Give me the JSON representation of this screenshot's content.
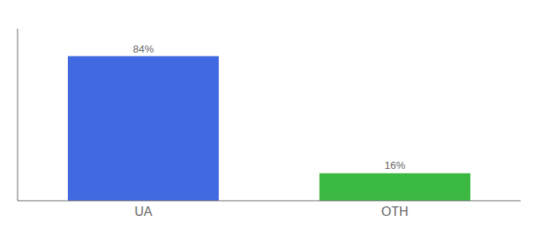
{
  "chart_data": {
    "type": "bar",
    "categories": [
      "UA",
      "OTH"
    ],
    "values": [
      84,
      16
    ],
    "colors": [
      "#4169e1",
      "#3cb943"
    ],
    "value_labels": [
      "84%",
      "16%"
    ],
    "ylim": [
      0,
      100
    ],
    "yticks": [],
    "tick_labels": "x",
    "data_labels": true,
    "grid": false
  }
}
